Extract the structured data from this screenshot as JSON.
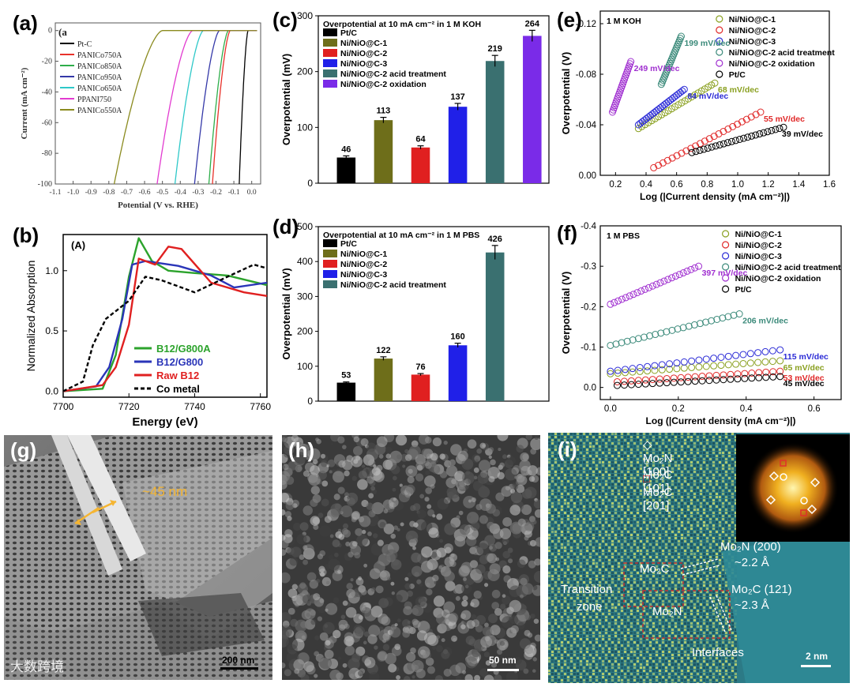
{
  "panels": {
    "a": {
      "label": "(a)",
      "inner_label": "(a"
    },
    "b": {
      "label": "(b)"
    },
    "c": {
      "label": "(c)"
    },
    "d": {
      "label": "(d)"
    },
    "e": {
      "label": "(e)"
    },
    "f": {
      "label": "(f)"
    },
    "g": {
      "label": "(g)",
      "annotation": "~45 nm",
      "scale": "200 nm"
    },
    "h": {
      "label": "(h)",
      "scale": "50 nm"
    },
    "i": {
      "label": "(i)",
      "scale": "2 nm",
      "legend": [
        "Mo₂N [100]",
        "Mo₂C [101]",
        "Mo₂C [201]"
      ],
      "annotations": [
        "Mo₂N (200)",
        "~2.2 Å",
        "Mo₂C (121)",
        "~2.3 Å",
        "Mo₂C",
        "Mo₂N",
        "Transition",
        "zone",
        "Interfaces"
      ]
    }
  },
  "watermark": "大数跨境",
  "chart_data": [
    {
      "id": "a",
      "type": "line",
      "xlabel": "Potential (V vs. RHE)",
      "ylabel": "Current (mA cm⁻²)",
      "xlim": [
        -1.1,
        0.05
      ],
      "ylim": [
        -100,
        5
      ],
      "xticks": [
        "-1.1",
        "-1.0",
        "-0.9",
        "-0.8",
        "-0.7",
        "-0.6",
        "-0.5",
        "-0.4",
        "-0.3",
        "-0.2",
        "-0.1",
        "0.0"
      ],
      "yticks": [
        "0",
        "-20",
        "-40",
        "-60",
        "-80",
        "-100"
      ],
      "series": [
        {
          "name": "Pt-C",
          "color": "#000000",
          "onset": -0.02,
          "end": -0.07
        },
        {
          "name": "PANICo750A",
          "color": "#e8322a",
          "onset": -0.12,
          "end": -0.22
        },
        {
          "name": "PANICo850A",
          "color": "#2eae4a",
          "onset": -0.13,
          "end": -0.24
        },
        {
          "name": "PANICo950A",
          "color": "#3438a8",
          "onset": -0.18,
          "end": -0.32
        },
        {
          "name": "PANICo650A",
          "color": "#2ec8c8",
          "onset": -0.27,
          "end": -0.43
        },
        {
          "name": "PPANI750",
          "color": "#e23bd0",
          "onset": -0.33,
          "end": -0.53
        },
        {
          "name": "PANICo550A",
          "color": "#8a8a1e",
          "onset": -0.5,
          "end": -0.77
        }
      ]
    },
    {
      "id": "b",
      "type": "line",
      "inner_label": "(A)",
      "xlabel": "Energy (eV)",
      "ylabel": "Normalized Absorption",
      "xlim": [
        7700,
        7762
      ],
      "ylim": [
        -0.05,
        1.3
      ],
      "xticks": [
        "7700",
        "7720",
        "7740",
        "7760"
      ],
      "yticks": [
        "0.0",
        "0.5",
        "1.0"
      ],
      "series": [
        {
          "name": "B12/G800A",
          "color": "#2ca32c",
          "style": "solid"
        },
        {
          "name": "B12/G800",
          "color": "#2a35b8",
          "style": "solid"
        },
        {
          "name": "Raw B12",
          "color": "#e02020",
          "style": "solid"
        },
        {
          "name": "Co metal",
          "color": "#000000",
          "style": "dashed"
        }
      ]
    },
    {
      "id": "c",
      "type": "bar",
      "title": "Overpotential at 10 mA cm⁻² in 1 M KOH",
      "ylabel": "Overpotential (mV)",
      "ylim": [
        0,
        300
      ],
      "yticks": [
        "0",
        "100",
        "200",
        "300"
      ],
      "categories": [
        "Pt/C",
        "Ni/NiO@C-1",
        "Ni/NiO@C-2",
        "Ni/NiO@C-3",
        "Ni/NiO@C-2 acid treatment",
        "Ni/NiO@C-2 oxidation"
      ],
      "values": [
        46,
        113,
        64,
        137,
        219,
        264
      ],
      "value_labels": [
        "46",
        "113",
        "64",
        "137",
        "219",
        "264"
      ],
      "errors": [
        3,
        5,
        3,
        6,
        10,
        10
      ],
      "colors": [
        "#000000",
        "#6e6e1a",
        "#e02020",
        "#2020e8",
        "#3a7070",
        "#7a2be8"
      ]
    },
    {
      "id": "d",
      "type": "bar",
      "title": "Overpotential at 10 mA cm⁻² in 1 M PBS",
      "ylabel": "Overpotential (mV)",
      "ylim": [
        0,
        500
      ],
      "yticks": [
        "0",
        "100",
        "200",
        "300",
        "400",
        "500"
      ],
      "categories": [
        "Pt/C",
        "Ni/NiO@C-1",
        "Ni/NiO@C-2",
        "Ni/NiO@C-3",
        "Ni/NiO@C-2 acid treatment"
      ],
      "values": [
        53,
        122,
        76,
        160,
        426
      ],
      "value_labels": [
        "53",
        "122",
        "76",
        "160",
        "426"
      ],
      "errors": [
        2,
        5,
        3,
        6,
        20
      ],
      "colors": [
        "#000000",
        "#6e6e1a",
        "#e02020",
        "#2020e8",
        "#3a7070"
      ]
    },
    {
      "id": "e",
      "type": "scatter",
      "inner_label": "1 M KOH",
      "xlabel": "Log (|Current density (mA cm⁻²)|)",
      "ylabel": "Overpotential (V)",
      "xlim": [
        0.1,
        1.6
      ],
      "ylim": [
        0,
        -0.13
      ],
      "xticks": [
        "0.2",
        "0.4",
        "0.6",
        "0.8",
        "1.0",
        "1.2",
        "1.4",
        "1.6"
      ],
      "yticks": [
        "0.00",
        "-0.04",
        "-0.08",
        "-0.12"
      ],
      "series": [
        {
          "name": "Ni/NiO@C-1",
          "color": "#8aa020",
          "slope_label": "68 mV/dec",
          "x0": 0.35,
          "y0": -0.037,
          "x1": 0.85,
          "y1": -0.073
        },
        {
          "name": "Ni/NiO@C-2",
          "color": "#e02828",
          "slope_label": "55 mV/dec",
          "x0": 0.45,
          "y0": -0.006,
          "x1": 1.15,
          "y1": -0.05
        },
        {
          "name": "Ni/NiO@C-3",
          "color": "#2b2bd6",
          "slope_label": "84 mV/dec",
          "x0": 0.35,
          "y0": -0.04,
          "x1": 0.65,
          "y1": -0.068
        },
        {
          "name": "Ni/NiO@C-2 acid treatment",
          "color": "#3b8a7a",
          "slope_label": "199 mV/dec",
          "x0": 0.5,
          "y0": -0.072,
          "x1": 0.63,
          "y1": -0.11
        },
        {
          "name": "Ni/NiO@C-2 oxidation",
          "color": "#a030d0",
          "slope_label": "249 mV/dec",
          "x0": 0.18,
          "y0": -0.05,
          "x1": 0.3,
          "y1": -0.09
        },
        {
          "name": "Pt/C",
          "color": "#000000",
          "slope_label": "39 mV/dec",
          "x0": 0.7,
          "y0": -0.018,
          "x1": 1.3,
          "y1": -0.038
        }
      ]
    },
    {
      "id": "f",
      "type": "scatter",
      "inner_label": "1 M PBS",
      "xlabel": "Log (|Current density (mA cm⁻²)|)",
      "ylabel": "Overpotential (V)",
      "xlim": [
        -0.03,
        0.68
      ],
      "ylim": [
        0.03,
        -0.4
      ],
      "xticks": [
        "0.0",
        "0.2",
        "0.4",
        "0.6"
      ],
      "yticks": [
        "0.0",
        "-0.1",
        "-0.2",
        "-0.3",
        "-0.4"
      ],
      "series": [
        {
          "name": "Ni/NiO@C-1",
          "color": "#8aa020",
          "slope_label": "65 mV/dec",
          "x0": 0.0,
          "y0": -0.034,
          "x1": 0.5,
          "y1": -0.066
        },
        {
          "name": "Ni/NiO@C-2",
          "color": "#e02828",
          "slope_label": "53 mV/dec",
          "x0": 0.02,
          "y0": -0.014,
          "x1": 0.5,
          "y1": -0.04
        },
        {
          "name": "Ni/NiO@C-3",
          "color": "#2b2bd6",
          "slope_label": "115 mV/dec",
          "x0": 0.0,
          "y0": -0.04,
          "x1": 0.5,
          "y1": -0.093
        },
        {
          "name": "Ni/NiO@C-2 acid treatment",
          "color": "#3b8a7a",
          "slope_label": "206 mV/dec",
          "x0": 0.0,
          "y0": -0.104,
          "x1": 0.38,
          "y1": -0.182
        },
        {
          "name": "Ni/NiO@C-2 oxidation",
          "color": "#a030d0",
          "slope_label": "397 mV/dec",
          "x0": 0.0,
          "y0": -0.206,
          "x1": 0.26,
          "y1": -0.3
        },
        {
          "name": "Pt/C",
          "color": "#000000",
          "slope_label": "45 mV/dec",
          "x0": 0.02,
          "y0": -0.005,
          "x1": 0.5,
          "y1": -0.027
        }
      ]
    }
  ]
}
